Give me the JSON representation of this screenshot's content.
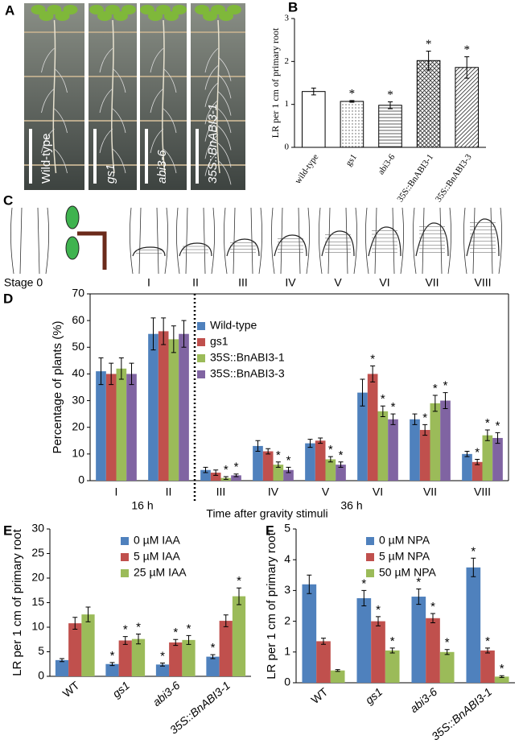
{
  "panel_labels": [
    "A",
    "B",
    "C",
    "D",
    "E",
    "F"
  ],
  "panel_a": {
    "labels": [
      "Wild-type",
      "gs1",
      "abi3-6",
      "35S::BnABI3-1"
    ]
  },
  "panel_c": {
    "stages": [
      "Stage 0",
      "I",
      "II",
      "III",
      "IV",
      "V",
      "VI",
      "VII",
      "VIII"
    ]
  },
  "chart_data": [
    {
      "type": "bar",
      "y_label": "LR per 1 cm of primary root",
      "categories": [
        "wild-type",
        "gs1",
        "abi3-6",
        "35S::BnABI3-1",
        "35S::BnABI3-3"
      ],
      "values": [
        1.3,
        1.07,
        0.98,
        2.02,
        1.86
      ],
      "errors": [
        0.08,
        0.02,
        0.08,
        0.22,
        0.25
      ],
      "significance": [
        null,
        "*",
        "*",
        "*",
        "*"
      ],
      "patterns": [
        "none",
        "dots",
        "hlines",
        "crosshatch",
        "diagonal"
      ],
      "ylim": [
        0,
        3
      ],
      "yticks": [
        0,
        1,
        2,
        3
      ],
      "grid": false
    },
    {
      "type": "bar",
      "y_label": "Percentage of plants (%)",
      "x_label": "Time after gravity stimuli",
      "group_labels": [
        "16 h",
        "36 h"
      ],
      "categories": [
        "I",
        "II",
        "III",
        "IV",
        "V",
        "VI",
        "VII",
        "VIII"
      ],
      "series": [
        {
          "name": "Wild-type",
          "color": "#4f81bd",
          "values": [
            41,
            55,
            4,
            13,
            14,
            33,
            23,
            10
          ],
          "errors": [
            5,
            6,
            1,
            2,
            1.5,
            5,
            2,
            1
          ],
          "significance": [
            null,
            null,
            null,
            null,
            null,
            null,
            null,
            null
          ]
        },
        {
          "name": "gs1",
          "color": "#c0504d",
          "values": [
            40,
            56,
            3,
            11,
            15,
            40,
            19,
            7
          ],
          "errors": [
            4,
            5,
            1,
            1,
            1,
            3,
            2,
            1
          ],
          "significance": [
            null,
            null,
            null,
            null,
            null,
            "*",
            "*",
            "*"
          ]
        },
        {
          "name": "35S::BnABI3-1",
          "color": "#9bbb59",
          "values": [
            42,
            53,
            1,
            6,
            8,
            26,
            29,
            17
          ],
          "errors": [
            4,
            5,
            0.5,
            1,
            1,
            2,
            3,
            2
          ],
          "significance": [
            null,
            null,
            "*",
            "*",
            "*",
            "*",
            "*",
            "*"
          ]
        },
        {
          "name": "35S::BnABI3-3",
          "color": "#8064a2",
          "values": [
            40,
            55,
            2,
            4,
            6,
            23,
            30,
            16
          ],
          "errors": [
            4,
            5,
            0.5,
            1,
            1,
            2,
            3,
            2
          ],
          "significance": [
            null,
            null,
            "*",
            "*",
            "*",
            "*",
            "*",
            "*"
          ]
        }
      ],
      "ylim": [
        0,
        70
      ],
      "yticks": [
        0,
        10,
        20,
        30,
        40,
        50,
        60,
        70
      ],
      "grid": false
    },
    {
      "type": "bar",
      "y_label": "LR per 1 cm of primary root",
      "categories": [
        "WT",
        "gs1",
        "abi3-6",
        "35S::BnABI3-1"
      ],
      "series": [
        {
          "name": "0 µM IAA",
          "color": "#4f81bd",
          "values": [
            3.3,
            2.5,
            2.4,
            4.0
          ],
          "errors": [
            0.3,
            0.3,
            0.3,
            0.4
          ],
          "significance": [
            null,
            "*",
            "*",
            "*"
          ]
        },
        {
          "name": "5 µM IAA",
          "color": "#c0504d",
          "values": [
            10.8,
            7.3,
            6.9,
            11.3
          ],
          "errors": [
            1.2,
            0.8,
            0.6,
            1.2
          ],
          "significance": [
            null,
            "*",
            "*",
            null
          ]
        },
        {
          "name": "25 µM IAA",
          "color": "#9bbb59",
          "values": [
            12.6,
            7.6,
            7.4,
            16.3
          ],
          "errors": [
            1.5,
            1,
            0.9,
            1.7
          ],
          "significance": [
            null,
            "*",
            "*",
            "*"
          ]
        }
      ],
      "ylim": [
        0,
        30
      ],
      "yticks": [
        0,
        5,
        10,
        15,
        20,
        25,
        30
      ],
      "grid": false
    },
    {
      "type": "bar",
      "y_label": "LR per 1 cm of primary root",
      "categories": [
        "WT",
        "gs1",
        "abi3-6",
        "35S::BnABI3-1"
      ],
      "series": [
        {
          "name": "0 µM NPA",
          "color": "#4f81bd",
          "values": [
            3.2,
            2.75,
            2.8,
            3.75
          ],
          "errors": [
            0.3,
            0.25,
            0.25,
            0.3
          ],
          "significance": [
            null,
            "*",
            "*",
            "*"
          ]
        },
        {
          "name": "5 µM NPA",
          "color": "#c0504d",
          "values": [
            1.35,
            2.0,
            2.1,
            1.05
          ],
          "errors": [
            0.1,
            0.15,
            0.15,
            0.08
          ],
          "significance": [
            null,
            "*",
            "*",
            "*"
          ]
        },
        {
          "name": "50 µM NPA",
          "color": "#9bbb59",
          "values": [
            0.4,
            1.05,
            1.0,
            0.2
          ],
          "errors": [
            0.03,
            0.08,
            0.08,
            0.03
          ],
          "significance": [
            null,
            "*",
            "*",
            "*"
          ]
        }
      ],
      "ylim": [
        0,
        5
      ],
      "yticks": [
        0,
        1,
        2,
        3,
        4,
        5
      ],
      "grid": false
    }
  ]
}
